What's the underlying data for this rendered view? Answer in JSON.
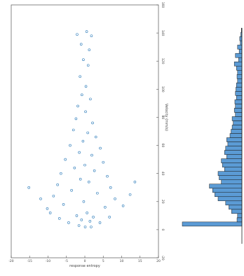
{
  "chart_data": [
    {
      "type": "scatter",
      "title": "",
      "xlabel": "response entropy",
      "ylabel": "",
      "xlim": [
        -20,
        20
      ],
      "ylim": [
        -20,
        160
      ],
      "x_ticks": [
        "-20",
        "-15",
        "-10",
        "-5",
        "0",
        "5",
        "10",
        "15",
        "20"
      ],
      "y_ticks": [
        "-20",
        "0",
        "20",
        "40",
        "60",
        "80",
        "100",
        "120",
        "140",
        "160"
      ],
      "marker": "open-circle",
      "color": "#2a7ab9",
      "grid": false,
      "series": [
        {
          "points": [
            [
              -2.1,
              139
            ],
            [
              0.5,
              141
            ],
            [
              1.8,
              138
            ],
            [
              -1.0,
              132
            ],
            [
              1.2,
              128
            ],
            [
              -0.4,
              121
            ],
            [
              0.9,
              117
            ],
            [
              -1.3,
              109
            ],
            [
              0.3,
              102
            ],
            [
              -0.8,
              96
            ],
            [
              1.5,
              93
            ],
            [
              -1.9,
              88
            ],
            [
              0.2,
              84
            ],
            [
              -2.4,
              79
            ],
            [
              2.1,
              76
            ],
            [
              -3.1,
              71
            ],
            [
              0.8,
              69
            ],
            [
              3.0,
              66
            ],
            [
              -0.5,
              63
            ],
            [
              -4.0,
              60
            ],
            [
              4.2,
              58
            ],
            [
              -1.5,
              55
            ],
            [
              1.9,
              53
            ],
            [
              -5.3,
              50
            ],
            [
              5.0,
              48
            ],
            [
              0.0,
              46
            ],
            [
              -2.8,
              44
            ],
            [
              2.6,
              42
            ],
            [
              -6.5,
              40
            ],
            [
              6.1,
              38
            ],
            [
              -1.2,
              36
            ],
            [
              1.1,
              34
            ],
            [
              -7.4,
              32
            ],
            [
              7.0,
              30
            ],
            [
              -3.6,
              28
            ],
            [
              3.4,
              26
            ],
            [
              -8.5,
              24
            ],
            [
              8.2,
              22
            ],
            [
              -0.3,
              20
            ],
            [
              -5.8,
              18
            ],
            [
              5.5,
              16
            ],
            [
              -10.2,
              15
            ],
            [
              10.4,
              17
            ],
            [
              0.6,
              12
            ],
            [
              -2.2,
              10
            ],
            [
              2.3,
              9
            ],
            [
              -12.0,
              22
            ],
            [
              12.3,
              25
            ],
            [
              -0.9,
              7
            ],
            [
              1.4,
              6
            ],
            [
              -15.2,
              30
            ],
            [
              13.6,
              34
            ],
            [
              -4.4,
              5
            ],
            [
              4.1,
              5
            ],
            [
              0.1,
              2
            ],
            [
              -1.6,
              3
            ],
            [
              1.7,
              2
            ],
            [
              -6.9,
              8
            ],
            [
              6.7,
              9
            ],
            [
              -9.4,
              12
            ]
          ]
        }
      ]
    },
    {
      "type": "bar",
      "orientation": "horizontal",
      "title": "",
      "ylabel": "Velocity (mm/s)",
      "color": "#5b9bd5",
      "grid": false,
      "bin_centers": [
        4,
        7,
        10,
        13,
        16,
        19,
        22,
        25,
        28,
        31,
        34,
        37,
        40,
        43,
        46,
        49,
        52,
        55,
        58,
        61,
        64,
        67,
        70,
        73,
        76,
        79,
        82,
        85,
        88,
        91,
        94,
        97,
        100,
        103,
        106,
        109,
        112,
        115,
        118,
        121,
        124,
        127,
        130,
        133,
        136,
        139,
        142
      ],
      "counts": [
        110,
        9,
        8,
        19,
        24,
        30,
        44,
        50,
        54,
        60,
        38,
        42,
        44,
        32,
        36,
        38,
        28,
        32,
        30,
        26,
        28,
        22,
        20,
        18,
        16,
        18,
        12,
        14,
        12,
        13,
        10,
        12,
        11,
        10,
        8,
        9,
        8,
        10,
        14,
        6,
        12,
        5,
        8,
        3,
        4,
        2,
        1
      ]
    }
  ]
}
